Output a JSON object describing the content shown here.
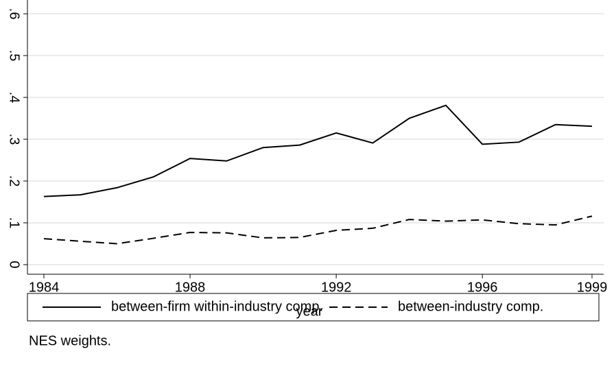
{
  "chart_data": {
    "type": "line",
    "x": [
      1984,
      1985,
      1986,
      1987,
      1988,
      1989,
      1990,
      1991,
      1992,
      1993,
      1994,
      1995,
      1996,
      1997,
      1998,
      1999
    ],
    "series": [
      {
        "name": "between-firm within-industry comp.",
        "color": "#000000",
        "dash": "solid",
        "values": [
          0.163,
          0.167,
          0.184,
          0.21,
          0.254,
          0.248,
          0.28,
          0.286,
          0.315,
          0.291,
          0.35,
          0.381,
          0.288,
          0.293,
          0.335,
          0.331
        ]
      },
      {
        "name": "between-industry comp.",
        "color": "#000000",
        "dash": "dashed",
        "values": [
          0.062,
          0.056,
          0.05,
          0.063,
          0.077,
          0.076,
          0.064,
          0.065,
          0.082,
          0.087,
          0.108,
          0.104,
          0.107,
          0.098,
          0.095,
          0.116
        ]
      }
    ],
    "xlabel": "year",
    "xlim": [
      1983.55,
      1999.32
    ],
    "xticks": [
      1984,
      1988,
      1992,
      1996,
      1999
    ],
    "ylim": [
      -0.023,
      0.633
    ],
    "yticks": [
      0,
      {
        "value": 0.1,
        "label": ".1"
      },
      {
        "value": 0.2,
        "label": ".2"
      },
      {
        "value": 0.3,
        "label": ".3"
      },
      {
        "value": 0.4,
        "label": ".4"
      },
      {
        "value": 0.5,
        "label": ".5"
      },
      {
        "value": 0.6,
        "label": ".6"
      }
    ],
    "grid": true,
    "note": "NES weights."
  }
}
